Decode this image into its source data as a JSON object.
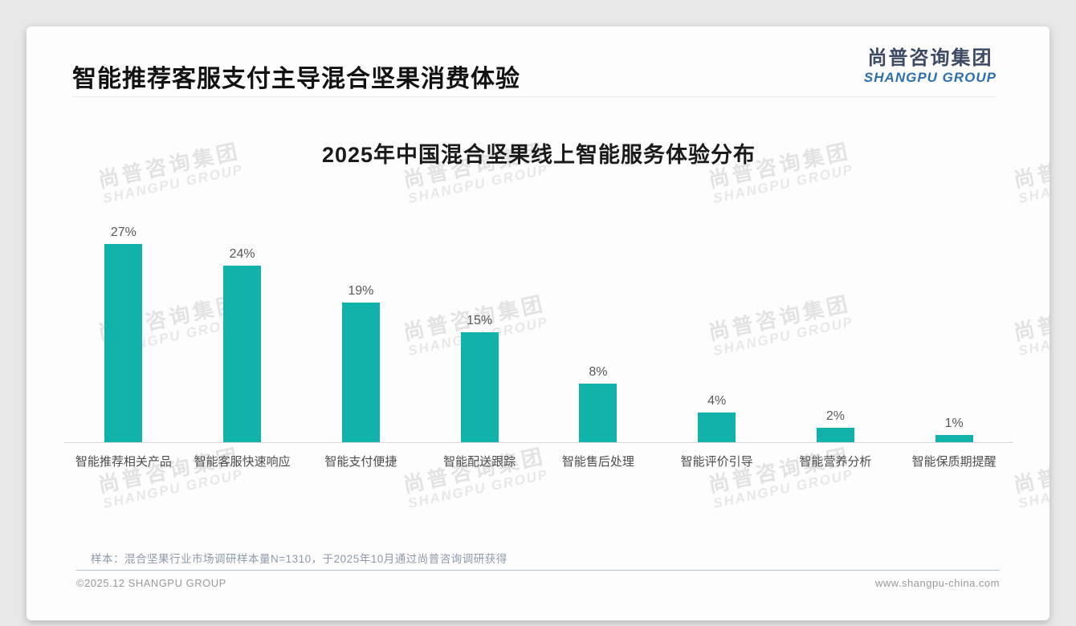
{
  "page": {
    "title": "智能推荐客服支付主导混合坚果消费体验",
    "logo": {
      "cn": "尚普咨询集团",
      "en": "SHANGPU GROUP"
    },
    "watermark": {
      "line1": "尚普咨询集团",
      "line2": "SHANGPU GROUP"
    },
    "note": "样本：混合坚果行业市场调研样本量N=1310，于2025年10月通过尚普咨询调研获得",
    "footer": {
      "left": "©2025.12 SHANGPU GROUP",
      "right": "www.shangpu-china.com"
    }
  },
  "colors": {
    "bar": "#11b2aa",
    "logo_cn": "#3c4a63",
    "logo_en": "#2e6fb0",
    "accent_divider": "#b3c3d6"
  },
  "chart_data": {
    "type": "bar",
    "title": "2025年中国混合坚果线上智能服务体验分布",
    "categories": [
      "智能推荐相关产品",
      "智能客服快速响应",
      "智能支付便捷",
      "智能配送跟踪",
      "智能售后处理",
      "智能评价引导",
      "智能营养分析",
      "智能保质期提醒"
    ],
    "values": [
      27,
      24,
      19,
      15,
      8,
      4,
      2,
      1
    ],
    "unit": "%",
    "data_labels": [
      "27%",
      "24%",
      "19%",
      "15%",
      "8%",
      "4%",
      "2%",
      "1%"
    ],
    "xlabel": "",
    "ylabel": "",
    "ylim": [
      0,
      30
    ],
    "grid": false,
    "legend": false,
    "bar_color": "#11b2aa",
    "data_label_position": "above-bar"
  }
}
